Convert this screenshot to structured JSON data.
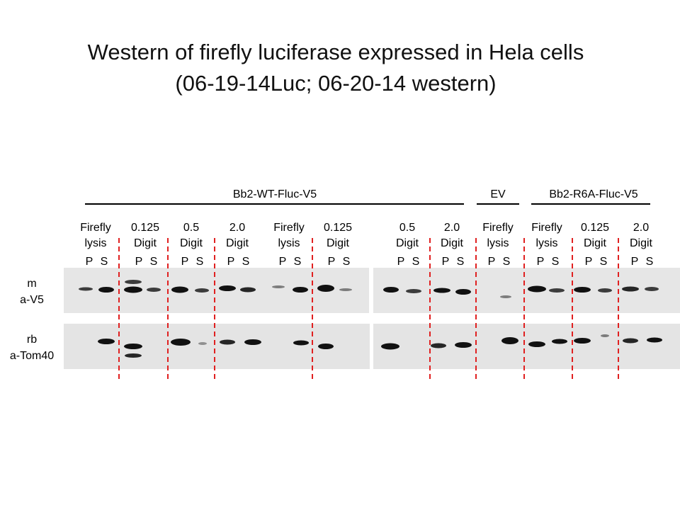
{
  "title": [
    "Western of firefly luciferase expressed in Hela cells",
    "(06-19-14Luc; 06-20-14 western)"
  ],
  "groups": [
    "Bb2-WT-Fluc-V5",
    "EV",
    "Bb2-R6A-Fluc-V5"
  ],
  "lanes": [
    {
      "line1": "Firefly",
      "line2": "lysis",
      "fractions": [
        "P",
        "S"
      ]
    },
    {
      "line1": "0.125",
      "line2": "Digit",
      "fractions": [
        "P",
        "S"
      ]
    },
    {
      "line1": "0.5",
      "line2": "Digit",
      "fractions": [
        "P",
        "S"
      ]
    },
    {
      "line1": "2.0",
      "line2": "Digit",
      "fractions": [
        "P",
        "S"
      ]
    },
    {
      "line1": "Firefly",
      "line2": "lysis",
      "fractions": [
        "P",
        "S"
      ]
    },
    {
      "line1": "0.125",
      "line2": "Digit",
      "fractions": [
        "P",
        "S"
      ]
    },
    {
      "line1": "0.5",
      "line2": "Digit",
      "fractions": [
        "P",
        "S"
      ]
    },
    {
      "line1": "2.0",
      "line2": "Digit",
      "fractions": [
        "P",
        "S"
      ]
    },
    {
      "line1": "Firefly",
      "line2": "lysis",
      "fractions": [
        "P",
        "S"
      ]
    },
    {
      "line1": "Firefly",
      "line2": "lysis",
      "fractions": [
        "P",
        "S"
      ]
    },
    {
      "line1": "0.125",
      "line2": "Digit",
      "fractions": [
        "P",
        "S"
      ]
    },
    {
      "line1": "2.0",
      "line2": "Digit",
      "fractions": [
        "P",
        "S"
      ]
    }
  ],
  "blots": [
    {
      "species": "m",
      "antibody": "a-V5"
    },
    {
      "species": "rb",
      "antibody": "a-Tom40"
    }
  ]
}
